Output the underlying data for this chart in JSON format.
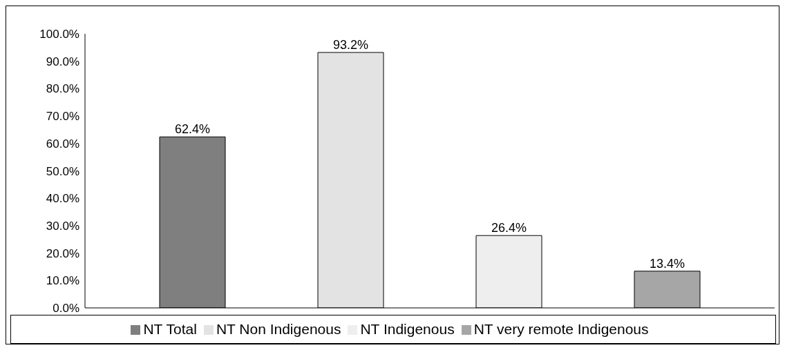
{
  "chart_data": {
    "type": "bar",
    "categories": [
      null
    ],
    "series": [
      {
        "name": "NT Total",
        "color": "#7f7f7f",
        "values": [
          62.4
        ],
        "value_labels": [
          "62.4%"
        ]
      },
      {
        "name": "NT Non Indigenous",
        "color": "#e3e3e3",
        "values": [
          93.2
        ],
        "value_labels": [
          "93.2%"
        ]
      },
      {
        "name": "NT Indigenous",
        "color": "#eeeeee",
        "values": [
          26.4
        ],
        "value_labels": [
          "26.4%"
        ]
      },
      {
        "name": "NT very remote Indigenous",
        "color": "#a6a6a6",
        "values": [
          13.4
        ],
        "value_labels": [
          "13.4%"
        ]
      }
    ],
    "ylim": [
      0,
      100
    ],
    "yticks": [
      {
        "value": 0,
        "label": "0.0%"
      },
      {
        "value": 10,
        "label": "10.0%"
      },
      {
        "value": 20,
        "label": "20.0%"
      },
      {
        "value": 30,
        "label": "30.0%"
      },
      {
        "value": 40,
        "label": "40.0%"
      },
      {
        "value": 50,
        "label": "50.0%"
      },
      {
        "value": 60,
        "label": "60.0%"
      },
      {
        "value": 70,
        "label": "70.0%"
      },
      {
        "value": 80,
        "label": "80.0%"
      },
      {
        "value": 90,
        "label": "90.0%"
      },
      {
        "value": 100,
        "label": "100.0%"
      }
    ],
    "legend": "bottom"
  }
}
